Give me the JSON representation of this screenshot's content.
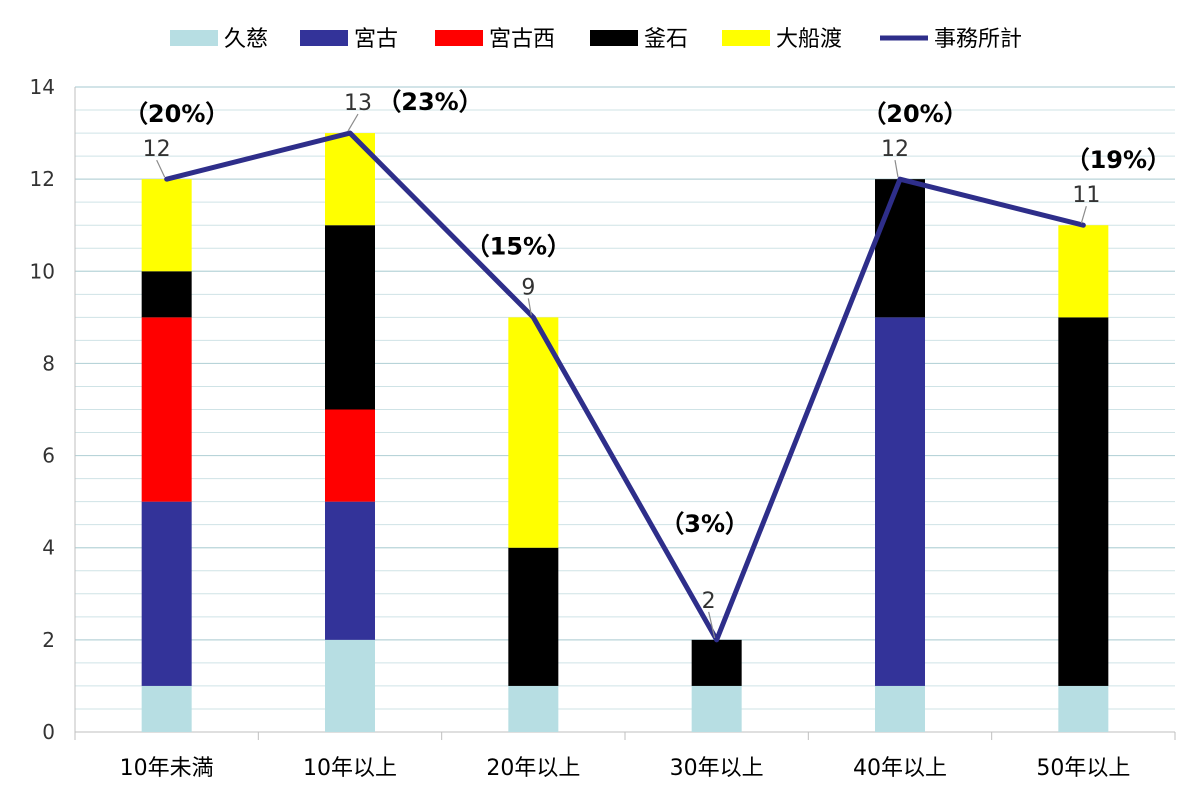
{
  "chart_data": {
    "type": "bar",
    "stacked": true,
    "categories": [
      "10年未満",
      "10年以上",
      "20年以上",
      "30年以上",
      "40年以上",
      "50年以上"
    ],
    "ylim": [
      0,
      14
    ],
    "yticks": [
      0,
      2,
      4,
      6,
      8,
      10,
      12,
      14
    ],
    "minor_grid_step": 0.5,
    "grid": true,
    "legend_position": "top",
    "series": [
      {
        "name": "久慈",
        "color": "#B7DEE3",
        "values": [
          1,
          2,
          1,
          1,
          1,
          1
        ]
      },
      {
        "name": "宮古",
        "color": "#333399",
        "values": [
          4,
          3,
          0,
          0,
          8,
          0
        ]
      },
      {
        "name": "宮古西",
        "color": "#FF0000",
        "values": [
          4,
          2,
          0,
          0,
          0,
          0
        ]
      },
      {
        "name": "釜石",
        "color": "#000000",
        "values": [
          1,
          4,
          3,
          1,
          3,
          8
        ]
      },
      {
        "name": "大船渡",
        "color": "#FFFF00",
        "values": [
          2,
          2,
          5,
          0,
          0,
          2
        ]
      }
    ],
    "line": {
      "name": "事務所計",
      "color": "#2E2E8A",
      "values": [
        12,
        13,
        9,
        2,
        12,
        11
      ],
      "labels": [
        "12",
        "13",
        "9",
        "2",
        "12",
        "11"
      ],
      "percent_labels": [
        "（20%）",
        "（23%）",
        "（15%）",
        "（3%）",
        "（20%）",
        "（19%）"
      ]
    }
  }
}
